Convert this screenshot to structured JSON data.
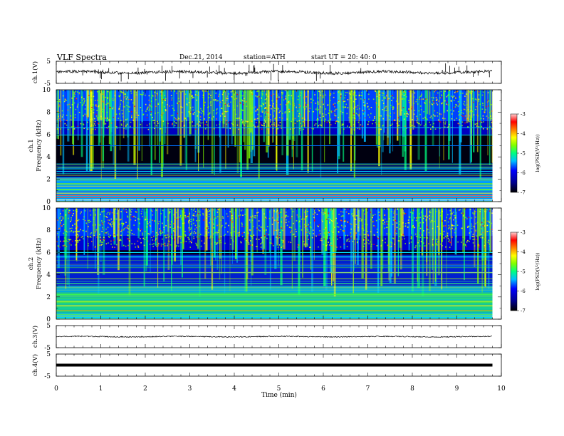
{
  "header": {
    "title": "VLF  Spectra",
    "date": "Dec.21, 2014",
    "station": "station=ATH",
    "start": "start  UT  =    20: 40: 0"
  },
  "chart_data": [
    {
      "type": "line",
      "name": "ch1-waveform",
      "ylabel": "ch.1(V)",
      "ylim": [
        -5,
        5
      ],
      "yticks": [
        "5",
        "-5"
      ],
      "xlim": [
        0,
        10
      ],
      "baseline_v": 0.0,
      "data_end_min": 9.8,
      "noise": "moderate, frequent spikes"
    },
    {
      "type": "heatmap",
      "name": "ch1-spectrogram",
      "ylabel": "Frequency  (kHz)",
      "channel": "ch.1",
      "ylim": [
        0,
        10
      ],
      "yticks": [
        "0",
        "2",
        "4",
        "6",
        "8",
        "10"
      ],
      "xlim": [
        0,
        10
      ],
      "data_end_min": 9.8,
      "colorbar": {
        "label": "log(PSD(V²/Hz))",
        "ticks": [
          "-3",
          "-4",
          "-5",
          "-6",
          "-7"
        ],
        "range": [
          -7,
          -3
        ]
      }
    },
    {
      "type": "heatmap",
      "name": "ch2-spectrogram",
      "ylabel": "Frequency  (kHz)",
      "channel": "ch.2",
      "ylim": [
        0,
        10
      ],
      "yticks": [
        "0",
        "2",
        "4",
        "6",
        "8",
        "10"
      ],
      "xlim": [
        0,
        10
      ],
      "data_end_min": 9.8,
      "colorbar": {
        "label": "log(PSD(V²/Hz))",
        "ticks": [
          "-3",
          "-4",
          "-5",
          "-6",
          "-7"
        ],
        "range": [
          -7,
          -3
        ]
      }
    },
    {
      "type": "line",
      "name": "ch3-waveform",
      "ylabel": "ch.3(V)",
      "ylim": [
        -5,
        5
      ],
      "yticks": [
        "5",
        "-5"
      ],
      "xlim": [
        0,
        10
      ],
      "baseline_v": 0.0,
      "data_end_min": 9.8,
      "noise": "low"
    },
    {
      "type": "line",
      "name": "ch4-waveform",
      "ylabel": "ch.4(V)",
      "ylim": [
        -5,
        5
      ],
      "yticks": [
        "5",
        "-5"
      ],
      "xlim": [
        0,
        10
      ],
      "baseline_v": 0.0,
      "data_end_min": 9.8,
      "noise": "thick band"
    }
  ],
  "xaxis": {
    "label": "Time  (min)",
    "ticks": [
      "0",
      "1",
      "2",
      "3",
      "4",
      "5",
      "6",
      "7",
      "8",
      "9",
      "10"
    ]
  },
  "colormap": [
    "#000000",
    "#00008b",
    "#0000ff",
    "#00bfff",
    "#00ff80",
    "#80ff00",
    "#ffff00",
    "#ff8000",
    "#ff0000",
    "#ffc0c0"
  ]
}
